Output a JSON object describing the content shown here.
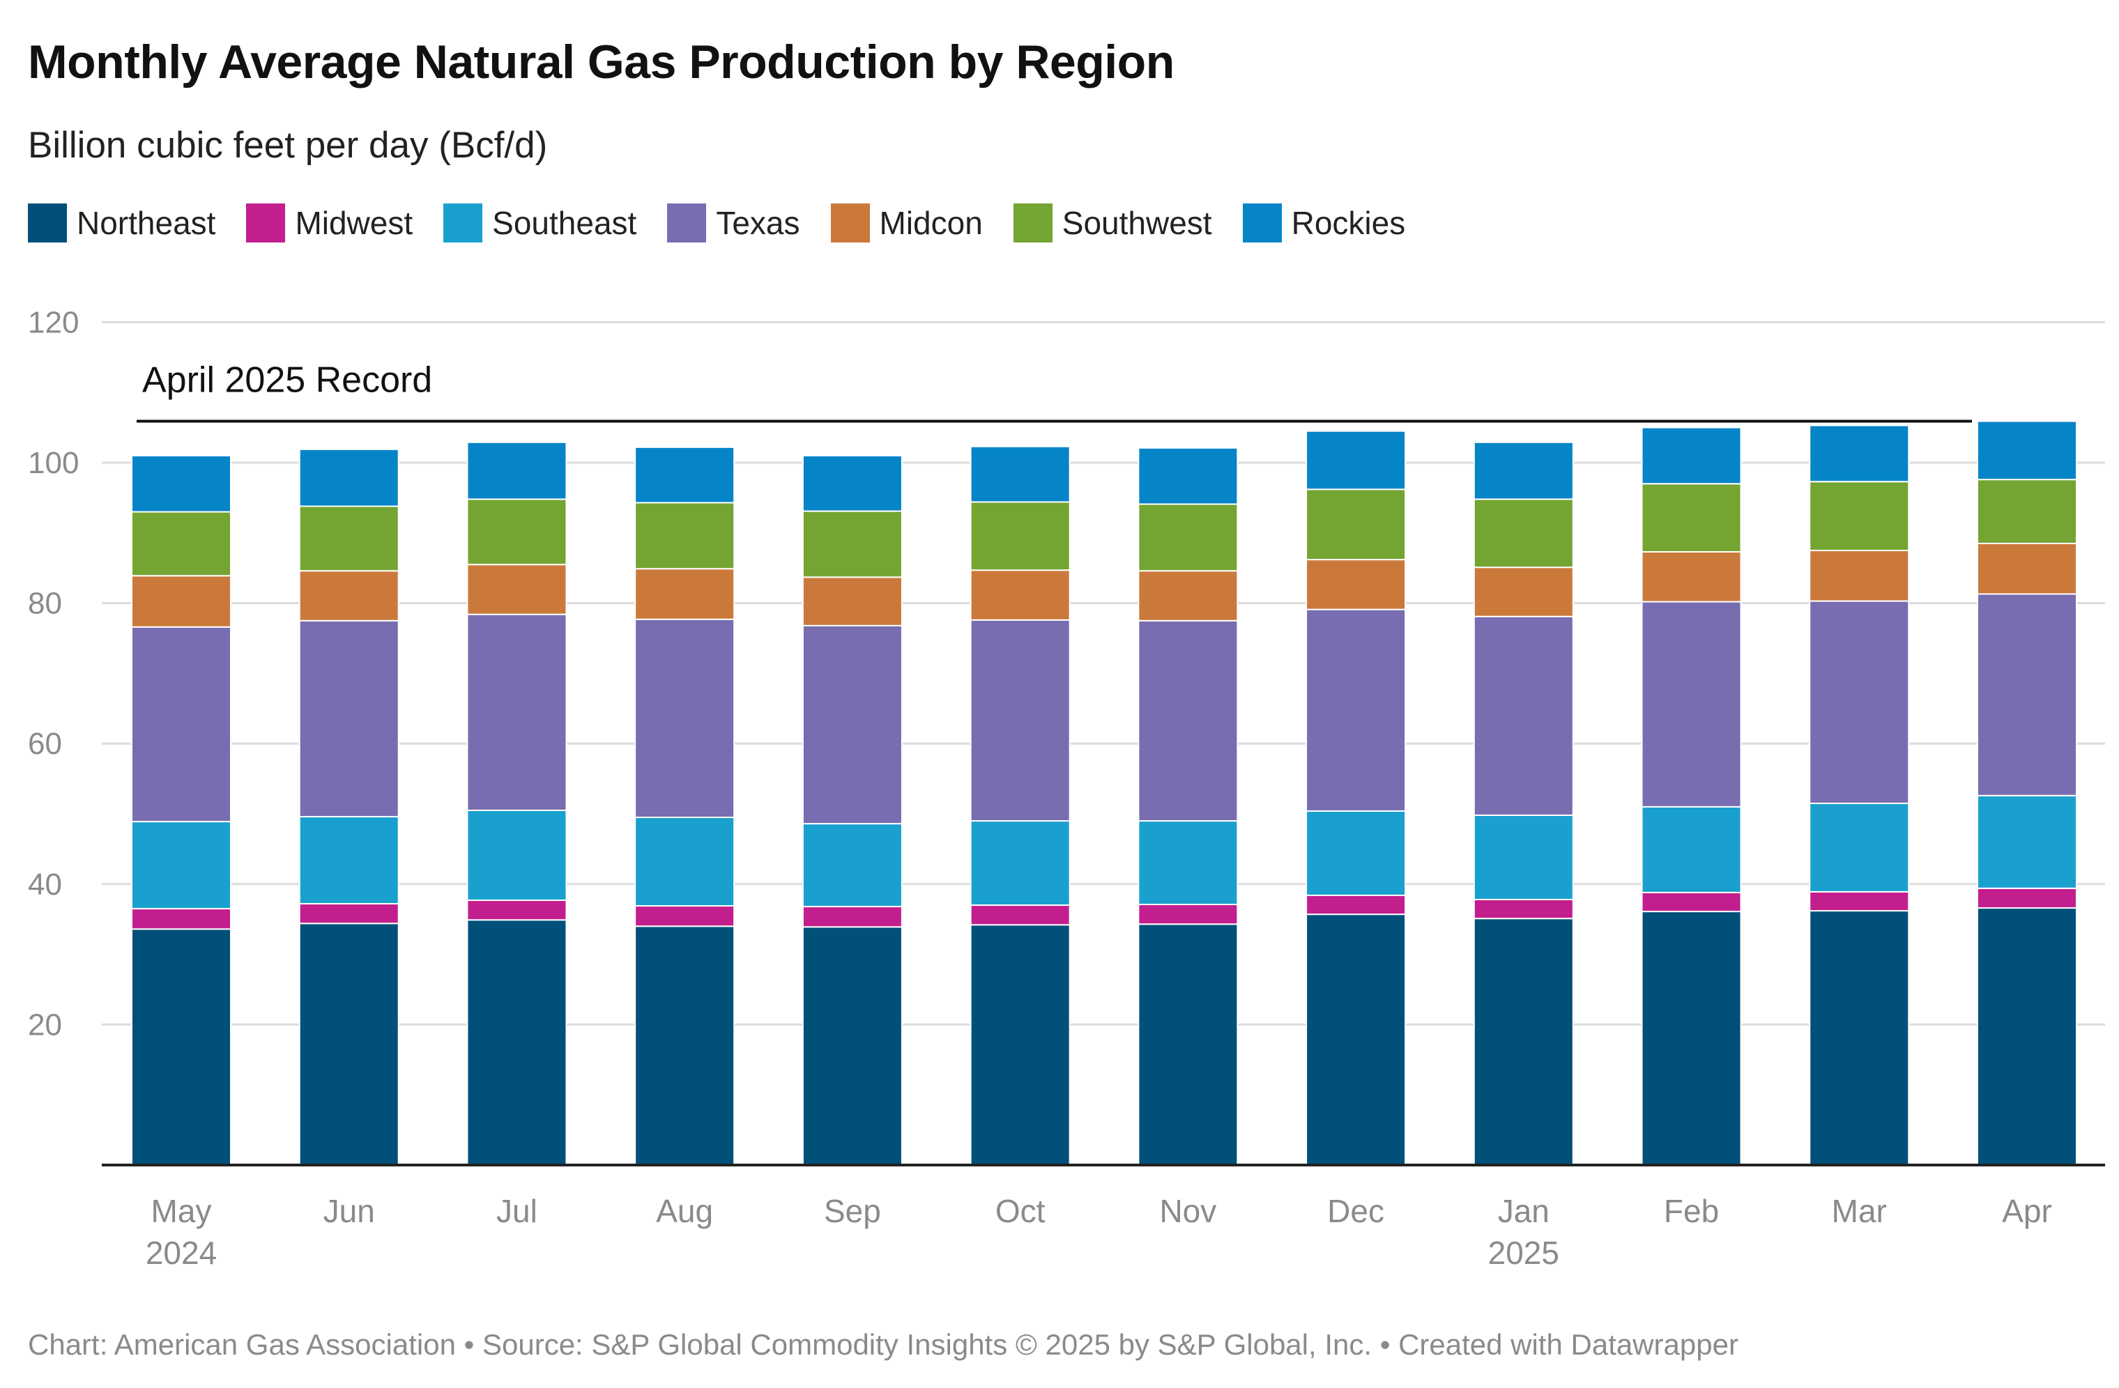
{
  "title": "Monthly Average Natural Gas Production by Region",
  "subtitle": "Billion cubic feet per day (Bcf/d)",
  "footer": "Chart: American Gas Association • Source: S&P Global Commodity Insights © 2025 by S&P Global, Inc. • Created with Datawrapper",
  "colors": {
    "Northeast": "#00507a",
    "Midwest": "#c31e8e",
    "Southeast": "#1aa0cf",
    "Texas": "#776db0",
    "Midcon": "#cb793b",
    "Southwest": "#74a432",
    "Rockies": "#0684c8",
    "grid": "#dcdcdc",
    "axis": "#222222",
    "tick": "#8a8a8a"
  },
  "chart_data": {
    "type": "bar",
    "stacked": true,
    "categories": [
      "May",
      "Jun",
      "Jul",
      "Aug",
      "Sep",
      "Oct",
      "Nov",
      "Dec",
      "Jan",
      "Feb",
      "Mar",
      "Apr"
    ],
    "category_sublabels": [
      "2024",
      "",
      "",
      "",
      "",
      "",
      "",
      "",
      "2025",
      "",
      "",
      ""
    ],
    "ylim": [
      0,
      120
    ],
    "yticks": [
      20,
      40,
      60,
      80,
      100,
      120
    ],
    "grid": true,
    "legend_position": "top-left",
    "series": [
      {
        "name": "Northeast",
        "values": [
          33.6,
          34.4,
          34.9,
          34.0,
          33.9,
          34.2,
          34.3,
          35.7,
          35.1,
          36.1,
          36.2,
          36.6
        ]
      },
      {
        "name": "Midwest",
        "values": [
          2.9,
          2.8,
          2.8,
          2.9,
          2.9,
          2.8,
          2.8,
          2.7,
          2.7,
          2.7,
          2.7,
          2.8
        ]
      },
      {
        "name": "Southeast",
        "values": [
          12.4,
          12.4,
          12.8,
          12.6,
          11.8,
          12.0,
          11.9,
          12.0,
          12.0,
          12.2,
          12.6,
          13.2
        ]
      },
      {
        "name": "Texas",
        "values": [
          27.7,
          27.9,
          27.9,
          28.2,
          28.2,
          28.6,
          28.5,
          28.7,
          28.3,
          29.2,
          28.8,
          28.7
        ]
      },
      {
        "name": "Midcon",
        "values": [
          7.3,
          7.1,
          7.1,
          7.2,
          6.9,
          7.1,
          7.1,
          7.1,
          7.0,
          7.1,
          7.2,
          7.2
        ]
      },
      {
        "name": "Southwest",
        "values": [
          9.1,
          9.2,
          9.3,
          9.4,
          9.4,
          9.7,
          9.5,
          10.0,
          9.7,
          9.7,
          9.8,
          9.1
        ]
      },
      {
        "name": "Rockies",
        "values": [
          8.0,
          8.1,
          8.1,
          7.9,
          7.9,
          7.9,
          8.0,
          8.3,
          8.1,
          8.0,
          8.0,
          8.3
        ]
      }
    ],
    "annotations": [
      {
        "text": "April 2025 Record",
        "type": "reference-line",
        "value": 105.9
      }
    ]
  }
}
